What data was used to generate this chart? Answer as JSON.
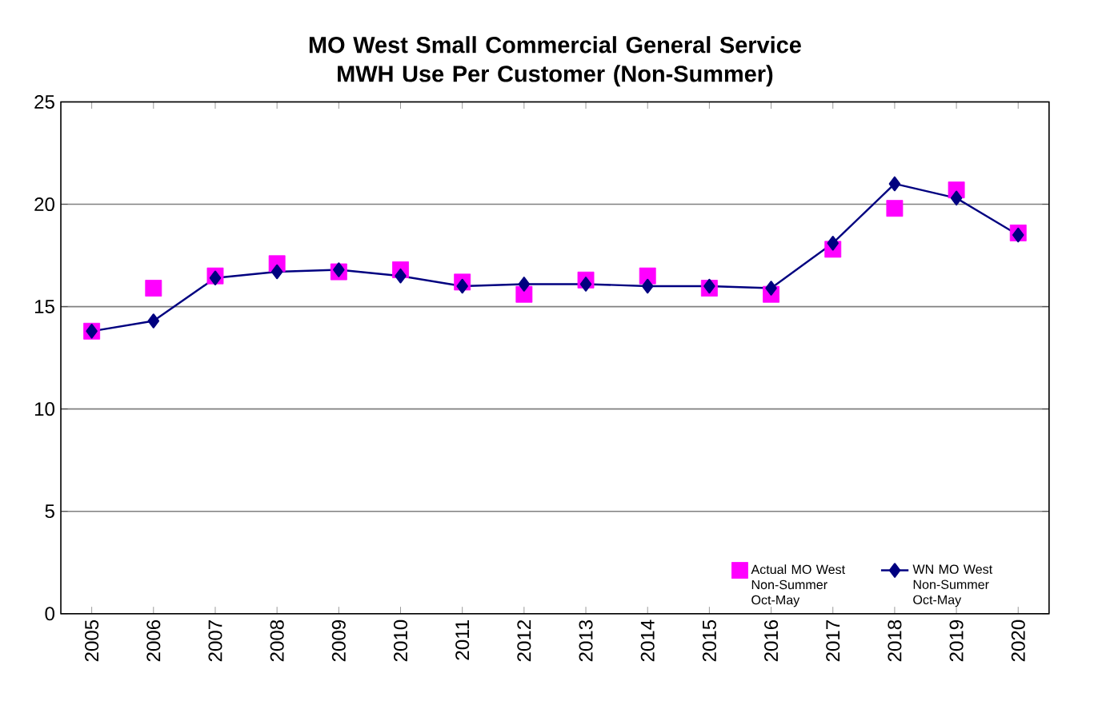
{
  "chart_data": {
    "type": "line",
    "title": "MO West Small Commercial General Service MWH Use Per Customer (Non-Summer)",
    "categories": [
      "2005",
      "2006",
      "2007",
      "2008",
      "2009",
      "2010",
      "2011",
      "2012",
      "2013",
      "2014",
      "2015",
      "2016",
      "2017",
      "2018",
      "2019",
      "2020"
    ],
    "series": [
      {
        "name": "Actual MO West Non-Summer Oct-May",
        "type": "scatter",
        "marker": "square",
        "color": "#ff00ff",
        "values": [
          13.8,
          15.9,
          16.5,
          17.1,
          16.7,
          16.8,
          16.2,
          15.6,
          16.3,
          16.5,
          15.9,
          15.6,
          17.8,
          19.8,
          20.7,
          18.6
        ]
      },
      {
        "name": "WN MO West Non-Summer Oct-May",
        "marker": "diamond",
        "color": "#000080",
        "values": [
          13.8,
          14.3,
          16.4,
          16.7,
          16.8,
          16.5,
          16.0,
          16.1,
          16.1,
          16.0,
          16.0,
          15.9,
          18.1,
          21.0,
          20.3,
          18.5
        ]
      }
    ],
    "ylim": [
      0,
      25
    ],
    "yticks": [
      0,
      5,
      10,
      15,
      20,
      25
    ],
    "grid": "y",
    "legend": "bottom right"
  }
}
